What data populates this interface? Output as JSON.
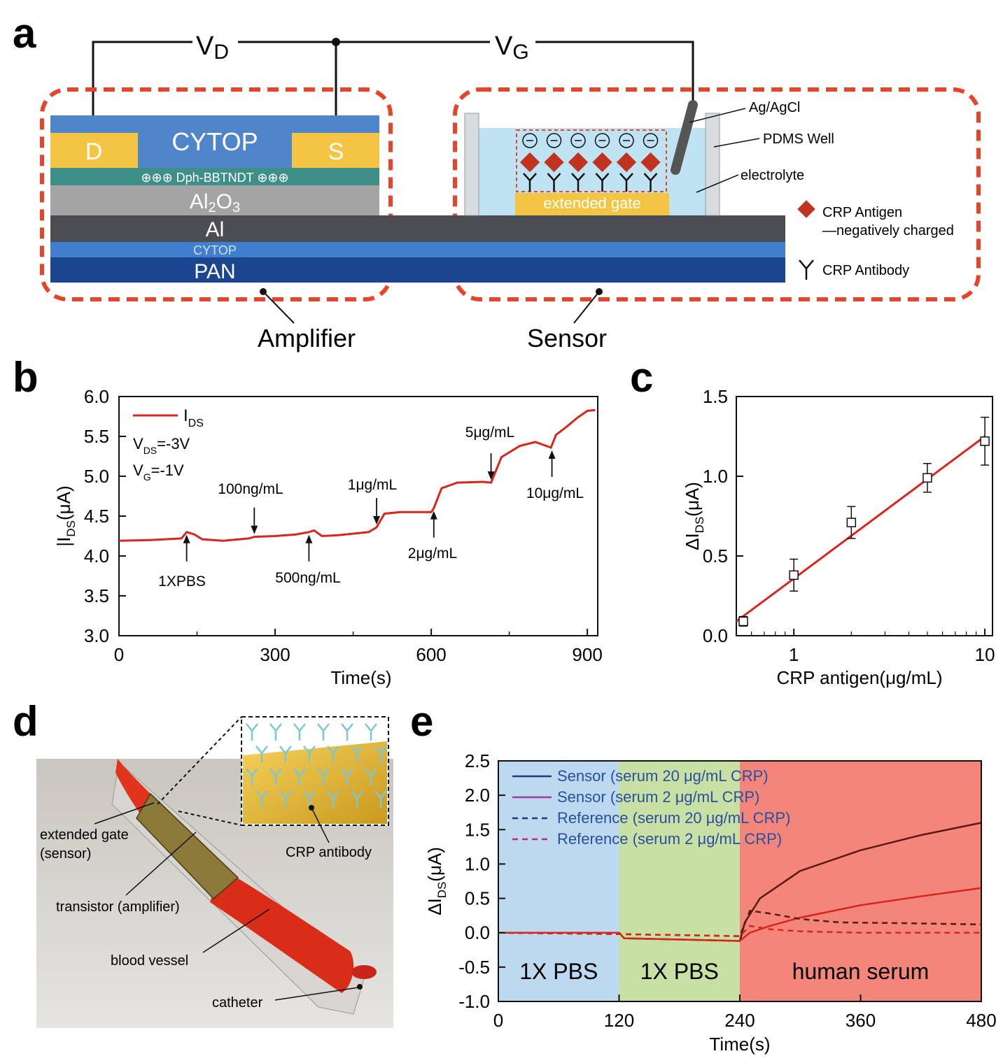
{
  "panel_letters": {
    "a": "a",
    "b": "b",
    "c": "c",
    "d": "d",
    "e": "e"
  },
  "panel_a": {
    "vd_main": "V",
    "vd_sub": "D",
    "vg_main": "V",
    "vg_sub": "G",
    "layers": {
      "cytop_top": "CYTOP",
      "drain": "D",
      "source": "S",
      "semiconductor": "⊕⊕⊕ Dph-BBTNDT ⊕⊕⊕",
      "al2o3_main": "Al",
      "al2o3_sub1": "2",
      "al2o3_o": "O",
      "al2o3_sub2": "3",
      "al": "Al",
      "cytop_bottom": "CYTOP",
      "pan": "PAN"
    },
    "extended_gate": "extended gate",
    "callouts": {
      "agagcl": "Ag/AgCl",
      "pdms": "PDMS Well",
      "electrolyte": "electrolyte"
    },
    "legend": {
      "antigen": "CRP Antigen",
      "antigen_note": "—negatively charged",
      "antibody": "CRP Antibody"
    },
    "amplifier": "Amplifier",
    "sensor": "Sensor",
    "colors": {
      "cytop": "#4f86c9",
      "electrode": "#f3c542",
      "semi": "#3e8f88",
      "al2o3": "#a4a4a4",
      "al": "#4b4d52",
      "cytop2": "#3f7fcd",
      "pan": "#1c4590",
      "dash": "#e8442a",
      "antigen": "#c0331f",
      "well": "#bfe3f3"
    }
  },
  "panel_b": {
    "ylabel_main": "|I",
    "ylabel_sub": "DS",
    "ylabel_end": "(μA)",
    "xlabel": "Time(s)",
    "legend_main": "I",
    "legend_sub": "DS",
    "cond1_main": "V",
    "cond1_sub": "DS",
    "cond1_end": "=-3V",
    "cond2_main": "V",
    "cond2_sub": "G",
    "cond2_end": "=-1V",
    "annotations": [
      "1XPBS",
      "100ng/mL",
      "500ng/mL",
      "1μg/mL",
      "2μg/mL",
      "5μg/mL",
      "10μg/mL"
    ],
    "chart_data": {
      "type": "line",
      "xlim": [
        0,
        920
      ],
      "ylim": [
        3.0,
        6.0
      ],
      "xticks": [
        0,
        300,
        600,
        900
      ],
      "yticks": [
        "3.0",
        "3.5",
        "4.0",
        "4.5",
        "5.0",
        "5.5",
        "6.0"
      ],
      "series": [
        {
          "name": "IDS",
          "color": "#d9261c",
          "x": [
            0,
            60,
            120,
            130,
            145,
            160,
            200,
            250,
            260,
            300,
            340,
            365,
            375,
            390,
            420,
            480,
            495,
            510,
            540,
            560,
            600,
            605,
            620,
            650,
            700,
            715,
            735,
            770,
            800,
            830,
            840,
            860,
            880,
            900,
            915
          ],
          "y": [
            4.19,
            4.2,
            4.22,
            4.3,
            4.27,
            4.21,
            4.19,
            4.22,
            4.24,
            4.25,
            4.27,
            4.3,
            4.32,
            4.25,
            4.26,
            4.3,
            4.36,
            4.53,
            4.55,
            4.55,
            4.55,
            4.6,
            4.85,
            4.92,
            4.93,
            4.92,
            5.24,
            5.38,
            5.43,
            5.36,
            5.52,
            5.62,
            5.73,
            5.82,
            5.83
          ]
        }
      ]
    }
  },
  "panel_c": {
    "ylabel_main": "ΔI",
    "ylabel_sub": "DS",
    "ylabel_end": "(μA)",
    "xlabel": "CRP antigen(μg/mL)",
    "chart_data": {
      "type": "scatter",
      "xscale": "log",
      "xlim": [
        0.5,
        10
      ],
      "ylim": [
        0.0,
        1.5
      ],
      "xticks": [
        "1",
        "10"
      ],
      "yticks": [
        "0.0",
        "0.5",
        "1.0",
        "1.5"
      ],
      "points": [
        {
          "x": 0.5,
          "y": 0.09,
          "err": 0.03
        },
        {
          "x": 1,
          "y": 0.38,
          "err": 0.1
        },
        {
          "x": 2,
          "y": 0.71,
          "err": 0.1
        },
        {
          "x": 5,
          "y": 0.99,
          "err": 0.09
        },
        {
          "x": 10,
          "y": 1.22,
          "err": 0.15
        }
      ],
      "fit": {
        "x": [
          0.5,
          10
        ],
        "y": [
          0.09,
          1.25
        ],
        "color": "#d9261c"
      }
    }
  },
  "panel_d": {
    "labels": {
      "extended_gate_1": "extended gate",
      "extended_gate_2": "(sensor)",
      "transistor": "transistor (amplifier)",
      "blood_vessel": "blood vessel",
      "catheter": "catheter",
      "crp_antibody": "CRP antibody"
    }
  },
  "panel_e": {
    "ylabel_main": "ΔI",
    "ylabel_sub": "DS",
    "ylabel_end": "(μA)",
    "xlabel": "Time(s)",
    "regions": [
      {
        "label": "1X PBS",
        "from": 0,
        "to": 120,
        "color": "#bcd9f0"
      },
      {
        "label": "1X PBS",
        "from": 120,
        "to": 240,
        "color": "#c8e0a3"
      },
      {
        "label": "human serum",
        "from": 240,
        "to": 480,
        "color": "#f4857a"
      }
    ],
    "legend": [
      {
        "label": "Sensor (serum 20 μg/mL CRP)",
        "color": "#1c3b7a",
        "dash": false
      },
      {
        "label": "Sensor (serum 2 μg/mL CRP)",
        "color": "#a0399d",
        "dash": false
      },
      {
        "label": "Reference (serum 20 μg/mL CRP)",
        "color": "#1c3b7a",
        "dash": true
      },
      {
        "label": "Reference (serum 2 μg/mL CRP)",
        "color": "#c2297a",
        "dash": true
      }
    ],
    "chart_data": {
      "type": "line",
      "xlim": [
        0,
        480
      ],
      "ylim": [
        -1.0,
        2.5
      ],
      "xticks": [
        0,
        120,
        240,
        360,
        480
      ],
      "yticks": [
        "-1.0",
        "-0.5",
        "0.0",
        "0.5",
        "1.0",
        "1.5",
        "2.0",
        "2.5"
      ],
      "series": [
        {
          "name": "Sensor (serum 20 μg/mL CRP)",
          "color": "#5a1a14",
          "dash": false,
          "x": [
            0,
            120,
            125,
            240,
            245,
            260,
            300,
            360,
            420,
            480
          ],
          "y": [
            0,
            0,
            -0.08,
            -0.12,
            0.15,
            0.5,
            0.9,
            1.2,
            1.42,
            1.6
          ]
        },
        {
          "name": "Sensor (serum 2 μg/mL CRP)",
          "color": "#d9261c",
          "dash": false,
          "x": [
            0,
            120,
            125,
            240,
            250,
            270,
            300,
            360,
            420,
            480
          ],
          "y": [
            0,
            0,
            -0.08,
            -0.12,
            0.0,
            0.1,
            0.22,
            0.4,
            0.53,
            0.65
          ]
        },
        {
          "name": "Reference (serum 20 μg/mL CRP)",
          "color": "#5a1a14",
          "dash": true,
          "x": [
            0,
            120,
            240,
            250,
            270,
            300,
            340,
            400,
            480
          ],
          "y": [
            0,
            -0.02,
            -0.05,
            0.32,
            0.28,
            0.2,
            0.15,
            0.14,
            0.12
          ]
        },
        {
          "name": "Reference (serum 2 μg/mL CRP)",
          "color": "#d9261c",
          "dash": true,
          "x": [
            0,
            120,
            240,
            250,
            270,
            300,
            360,
            480
          ],
          "y": [
            0,
            -0.02,
            -0.05,
            0.1,
            0.05,
            0.02,
            0.0,
            0.0
          ]
        }
      ]
    }
  }
}
